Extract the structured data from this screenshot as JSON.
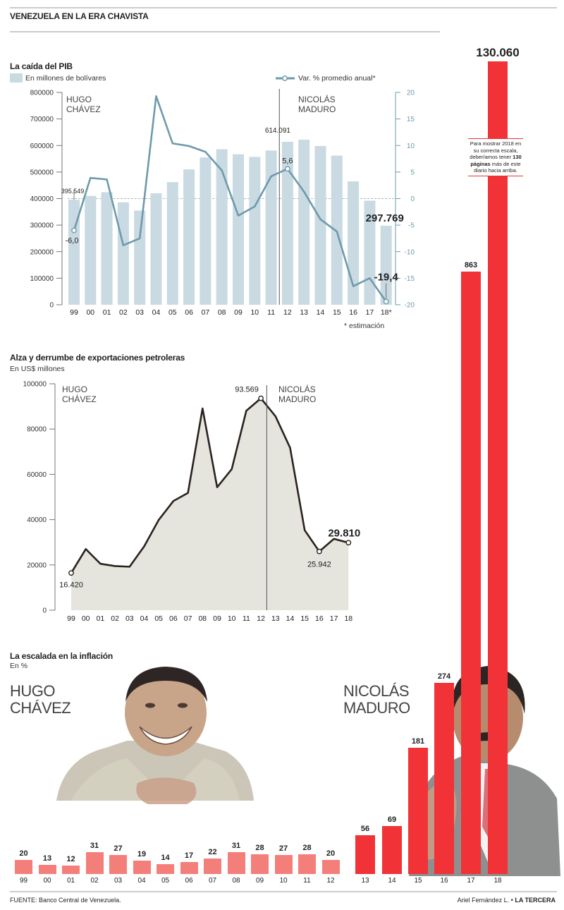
{
  "title": "VENEZUELA EN LA ERA CHAVISTA",
  "chart_data": [
    {
      "type": "bar",
      "title": "La caída del PIB",
      "categories": [
        "99",
        "00",
        "01",
        "02",
        "03",
        "04",
        "05",
        "06",
        "07",
        "08",
        "09",
        "10",
        "11",
        "12",
        "13",
        "14",
        "15",
        "16",
        "17",
        "18*"
      ],
      "series": [
        {
          "name": "En millones de bolívares",
          "type": "bar",
          "values": [
            395549,
            410000,
            424000,
            386000,
            355000,
            420000,
            462000,
            510000,
            555000,
            586000,
            567000,
            557000,
            581000,
            614091,
            622000,
            598000,
            562000,
            465000,
            392000,
            297769
          ]
        },
        {
          "name": "Var. % promedio anual*",
          "type": "line",
          "axis": "right",
          "values": [
            -6.0,
            3.9,
            3.6,
            -8.8,
            -7.5,
            19.3,
            10.4,
            9.9,
            8.8,
            5.3,
            -3.2,
            -1.5,
            4.2,
            5.6,
            1.3,
            -3.9,
            -6.2,
            -16.5,
            -15.0,
            -19.4
          ]
        }
      ],
      "ylim": [
        0,
        800000
      ],
      "y2lim": [
        -20,
        20
      ],
      "yticks": [
        "800000",
        "700000",
        "600000",
        "500000",
        "400000",
        "300000",
        "200000",
        "100000",
        "0"
      ],
      "y2ticks": [
        "20",
        "15",
        "10",
        "5",
        "0",
        "-5",
        "-10",
        "-15",
        "-20"
      ],
      "labels": {
        "first_bar": "395.549",
        "peak_bar": "614.091",
        "last_bar": "297.769",
        "first_var": "-6,0",
        "peak_var": "5,6",
        "last_var": "-19,4"
      },
      "periods": {
        "chavez": "HUGO\nCHÁVEZ",
        "maduro": "NICOLÁS\nMADURO"
      },
      "footnote": "* estimación",
      "colors": {
        "bar": "#c9dae2",
        "line": "#6e9aab"
      }
    },
    {
      "type": "area",
      "title": "Alza y derrumbe de exportaciones petroleras",
      "ylabel": "En US$ millones",
      "categories": [
        "99",
        "00",
        "01",
        "02",
        "03",
        "04",
        "05",
        "06",
        "07",
        "08",
        "09",
        "10",
        "11",
        "12",
        "13",
        "14",
        "15",
        "16",
        "17",
        "18"
      ],
      "values": [
        16420,
        27000,
        20500,
        19500,
        19200,
        28200,
        39900,
        48200,
        51800,
        89100,
        54300,
        62300,
        88100,
        93569,
        85600,
        71700,
        35300,
        25942,
        31500,
        29810
      ],
      "ylim": [
        0,
        100000
      ],
      "yticks": [
        "100000",
        "80000",
        "60000",
        "40000",
        "20000",
        "0"
      ],
      "labels": {
        "first": "16.420",
        "peak": "93.569",
        "low": "25.942",
        "last": "29.810"
      },
      "periods": {
        "chavez": "HUGO\nCHÁVEZ",
        "maduro": "NICOLÁS\nMADURO"
      },
      "colors": {
        "area": "#e5e5de",
        "line": "#2b221e"
      }
    },
    {
      "type": "bar",
      "title": "La escalada en la inflación",
      "ylabel": "En %",
      "categories": [
        "99",
        "00",
        "01",
        "02",
        "03",
        "04",
        "05",
        "06",
        "07",
        "08",
        "09",
        "10",
        "11",
        "12",
        "13",
        "14",
        "15",
        "16",
        "17",
        "18"
      ],
      "values": [
        20,
        13,
        12,
        31,
        27,
        19,
        14,
        17,
        22,
        31,
        28,
        27,
        28,
        20,
        56,
        69,
        181,
        274,
        863,
        130060
      ],
      "value_labels": [
        "20",
        "13",
        "12",
        "31",
        "27",
        "19",
        "14",
        "17",
        "22",
        "31",
        "28",
        "27",
        "28",
        "20",
        "56",
        "69",
        "181",
        "274",
        "863",
        "130.060"
      ],
      "periods": {
        "chavez": "HUGO\nCHÁVEZ",
        "maduro": "NICOLÁS\nMADURO"
      },
      "note": {
        "pre": "Para mostrar 2018 en su correcta escala, deberíamos tener ",
        "bold1": "130",
        "mid": " ",
        "bold2": "páginas",
        "post": " más de este diario hacia arriba."
      },
      "colors": {
        "chavez": "#f47f7a",
        "maduro": "#f13237"
      }
    }
  ],
  "footer": {
    "source": "FUENTE: Banco Central de Venezuela.",
    "author": "Ariel Fernández L. • ",
    "outlet": "LA TERCERA"
  }
}
